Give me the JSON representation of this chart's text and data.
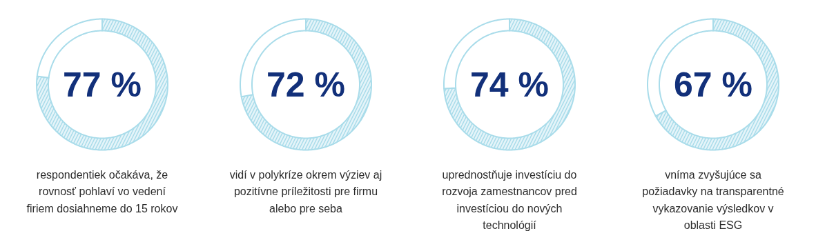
{
  "chart_data": [
    {
      "type": "donut",
      "title": "77 %",
      "categories": [
        null,
        null
      ],
      "values": [
        77,
        23
      ],
      "colors": [
        "#a9dcea",
        "#ffffff"
      ],
      "annotations": [
        "respondentiek očakáva, že\nrovnosť pohlaví vo vedení\nfiriem dosiahneme do 15 rokov"
      ]
    },
    {
      "type": "donut",
      "title": "72 %",
      "categories": [
        null,
        null
      ],
      "values": [
        72,
        28
      ],
      "colors": [
        "#a9dcea",
        "#ffffff"
      ],
      "annotations": [
        "vidí v polykríze okrem výziev aj\npozitívne príležitosti pre firmu\nalebo pre seba"
      ]
    },
    {
      "type": "donut",
      "title": "74 %",
      "categories": [
        null,
        null
      ],
      "values": [
        74,
        26
      ],
      "colors": [
        "#a9dcea",
        "#ffffff"
      ],
      "annotations": [
        "uprednostňuje investíciu do\nrozvoja zamestnancov pred\ninvestíciou do nových\ntechnológií"
      ]
    },
    {
      "type": "donut",
      "title": "67 %",
      "categories": [
        null,
        null
      ],
      "values": [
        67,
        33
      ],
      "colors": [
        "#a9dcea",
        "#ffffff"
      ],
      "annotations": [
        "vníma zvyšujúce sa\npožiadavky na transparentné\nvykazovanie výsledkov v\noblasti ESG"
      ]
    }
  ]
}
